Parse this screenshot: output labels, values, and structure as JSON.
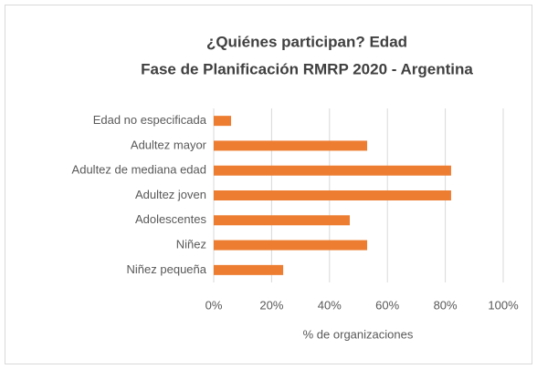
{
  "chart_data": {
    "type": "bar",
    "orientation": "horizontal",
    "title": "¿Quiénes participan? Edad",
    "subtitle": "Fase de Planificación RMRP 2020 - Argentina",
    "x_label": "% de organizaciones",
    "categories": [
      "Edad no especificada",
      "Adultez mayor",
      "Adultez de mediana edad",
      "Adultez joven",
      "Adolescentes",
      "Niñez",
      "Niñez pequeña"
    ],
    "values": [
      6,
      53,
      82,
      82,
      47,
      53,
      24
    ],
    "color": "#ed7d31",
    "xlim": [
      0,
      100
    ],
    "xticks": [
      {
        "value": 0,
        "label": "0%"
      },
      {
        "value": 20,
        "label": "20%"
      },
      {
        "value": 40,
        "label": "40%"
      },
      {
        "value": 60,
        "label": "60%"
      },
      {
        "value": 80,
        "label": "80%"
      },
      {
        "value": 100,
        "label": "100%"
      }
    ],
    "grid": true
  }
}
